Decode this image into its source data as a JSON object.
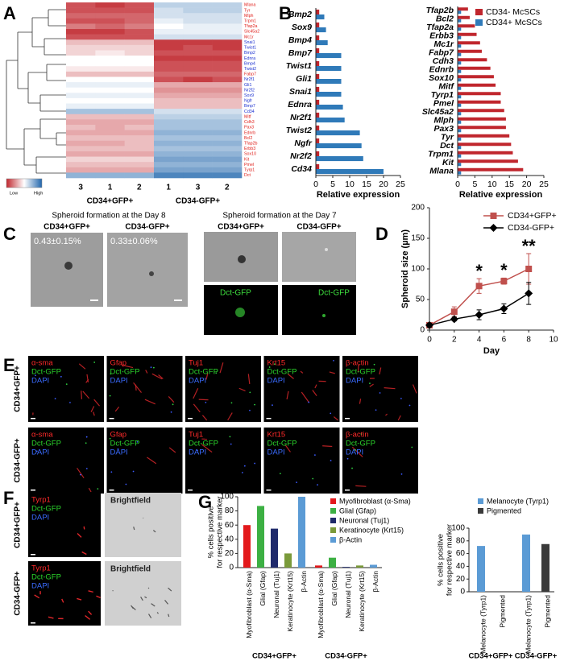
{
  "panel_letters": [
    "A",
    "B",
    "C",
    "D",
    "E",
    "F",
    "G"
  ],
  "chart_data": [
    {
      "type": "heatmap",
      "rows": [
        "Mlana",
        "Tyr",
        "Mlph",
        "Trpm1",
        "Tfap2a",
        "Slc45a2",
        "Mc1r",
        "Snai1",
        "Twist1",
        "Bmp2",
        "Ednra",
        "Bmp4",
        "Twist2",
        "Fabp7",
        "Nr2f1",
        "Gli1",
        "Nr2f2",
        "Sox9",
        "Ngfr",
        "Bmp7",
        "Cd34",
        "Mitf",
        "Cdh3",
        "Pax3",
        "Ednrb",
        "Bcl2",
        "Tfap2b",
        "Erbb3",
        "Sox10",
        "Kit",
        "Pmel",
        "Tyrp1",
        "Dct"
      ],
      "row_label_colors": [
        "#e0201b",
        "#e0201b",
        "#e0201b",
        "#e0201b",
        "#e0201b",
        "#e0201b",
        "#e0201b",
        "#1a2fd0",
        "#1a2fd0",
        "#1a2fd0",
        "#1a2fd0",
        "#1a2fd0",
        "#1a2fd0",
        "#e0201b",
        "#1a2fd0",
        "#1a2fd0",
        "#1a2fd0",
        "#1a2fd0",
        "#1a2fd0",
        "#1a2fd0",
        "#1a2fd0",
        "#e0201b",
        "#e0201b",
        "#e0201b",
        "#e0201b",
        "#e0201b",
        "#e0201b",
        "#e0201b",
        "#e0201b",
        "#e0201b",
        "#e0201b",
        "#e0201b",
        "#e0201b"
      ],
      "columns": [
        "3",
        "1",
        "2",
        "1",
        "3",
        "2"
      ],
      "groups": [
        "CD34+GFP+",
        "CD34-GFP+"
      ],
      "values": [
        [
          -0.8,
          -0.9,
          -0.8,
          0.3,
          0.3,
          0.3
        ],
        [
          -0.8,
          -0.8,
          -0.8,
          0.2,
          0.3,
          0.3
        ],
        [
          -0.7,
          -0.7,
          -0.7,
          0.2,
          0.2,
          0.2
        ],
        [
          -0.8,
          -0.8,
          -0.7,
          0.1,
          0.2,
          0.2
        ],
        [
          -0.6,
          -0.7,
          -0.6,
          0.0,
          0.1,
          0.1
        ],
        [
          -0.9,
          -0.9,
          -0.8,
          0.1,
          0.1,
          0.1
        ],
        [
          -0.8,
          -0.8,
          -0.8,
          0.2,
          0.2,
          0.2
        ],
        [
          -0.3,
          -0.3,
          -0.3,
          -0.9,
          -0.9,
          -0.9
        ],
        [
          -0.2,
          -0.2,
          -0.2,
          -0.9,
          -0.8,
          -0.9
        ],
        [
          -0.2,
          -0.1,
          -0.2,
          -0.8,
          -0.8,
          -0.8
        ],
        [
          0.0,
          0.0,
          0.0,
          -0.9,
          -0.9,
          -0.9
        ],
        [
          0.0,
          0.0,
          0.0,
          -0.8,
          -0.8,
          -0.8
        ],
        [
          -0.1,
          -0.1,
          -0.1,
          -0.8,
          -0.8,
          -0.8
        ],
        [
          -0.3,
          -0.3,
          -0.3,
          -0.7,
          -0.7,
          -0.7
        ],
        [
          0.0,
          0.0,
          0.0,
          -0.8,
          -0.9,
          -0.8
        ],
        [
          0.1,
          0.1,
          0.1,
          -0.4,
          -0.4,
          -0.4
        ],
        [
          0.0,
          0.0,
          0.0,
          -0.5,
          -0.5,
          -0.5
        ],
        [
          0.1,
          0.1,
          0.1,
          -0.4,
          -0.4,
          -0.4
        ],
        [
          0.0,
          0.0,
          0.0,
          -0.3,
          -0.3,
          -0.3
        ],
        [
          0.1,
          0.1,
          0.1,
          -0.3,
          -0.3,
          -0.3
        ],
        [
          0.4,
          0.4,
          0.4,
          0.2,
          0.2,
          0.2
        ],
        [
          -0.3,
          -0.3,
          -0.3,
          0.3,
          0.3,
          0.3
        ],
        [
          -0.4,
          -0.4,
          -0.4,
          0.4,
          0.4,
          0.4
        ],
        [
          -0.3,
          -0.4,
          -0.3,
          0.4,
          0.4,
          0.4
        ],
        [
          -0.4,
          -0.4,
          -0.4,
          0.5,
          0.5,
          0.5
        ],
        [
          -0.3,
          -0.3,
          -0.3,
          0.4,
          0.4,
          0.4
        ],
        [
          -0.4,
          -0.4,
          -0.3,
          0.5,
          0.5,
          0.5
        ],
        [
          -0.3,
          -0.3,
          -0.3,
          0.4,
          0.4,
          0.4
        ],
        [
          -0.4,
          -0.4,
          -0.4,
          0.5,
          0.5,
          0.5
        ],
        [
          -0.2,
          -0.2,
          -0.2,
          0.6,
          0.6,
          0.6
        ],
        [
          -0.3,
          -0.3,
          -0.3,
          0.5,
          0.5,
          0.5
        ],
        [
          -0.4,
          -0.4,
          -0.4,
          0.6,
          0.6,
          0.6
        ],
        [
          0.5,
          0.5,
          0.5,
          0.8,
          0.8,
          0.8
        ]
      ],
      "zlim": [
        -1,
        1
      ],
      "colors": [
        "#c0262d",
        "#ffffff",
        "#2166ac"
      ],
      "colorbar_labels": [
        "Low",
        "High"
      ]
    },
    {
      "type": "hbar",
      "categories": [
        "Bmp2",
        "Sox9",
        "Bmp4",
        "Bmp7",
        "Twist1",
        "Gli1",
        "Snai1",
        "Ednra",
        "Nr2f1",
        "Twist2",
        "Ngfr",
        "Nr2f2",
        "Cd34"
      ],
      "series": [
        {
          "color": "#c0262d",
          "values": [
            1,
            1,
            1,
            1,
            1,
            1,
            1,
            1,
            1,
            1,
            1,
            1,
            1
          ]
        },
        {
          "color": "#2f7ab9",
          "values": [
            2.5,
            3,
            3.5,
            7.5,
            7.5,
            7.5,
            7.5,
            8,
            8.5,
            13,
            13.5,
            14,
            20
          ]
        }
      ],
      "xlim": [
        0,
        25
      ],
      "xticks": [
        0,
        5,
        10,
        15,
        20,
        25
      ],
      "xlabel": "Relative expression"
    },
    {
      "type": "hbar",
      "categories": [
        "Tfap2b",
        "Bcl2",
        "Tfap2a",
        "Erbb3",
        "Mc1r",
        "Fabp7",
        "Cdh3",
        "Ednrb",
        "Sox10",
        "Mitf",
        "Tyrp1",
        "Pmel",
        "Slc45a2",
        "Mlph",
        "Pax3",
        "Tyr",
        "Dct",
        "Trpm1",
        "Kit",
        "Mlana"
      ],
      "series": [
        {
          "name": "CD34- McSCs",
          "color": "#c0262d",
          "values": [
            3,
            3.5,
            5,
            5.5,
            6.5,
            7,
            8.5,
            9.5,
            10.5,
            11,
            12.5,
            12.5,
            13.5,
            14,
            14,
            15,
            15.5,
            16,
            17.5,
            19
          ]
        },
        {
          "name": "CD34+ McSCs",
          "color": "#2f7ab9",
          "values": [
            1,
            1,
            1,
            1,
            1,
            1,
            1,
            1,
            1,
            1,
            1,
            1,
            1,
            1,
            1,
            1,
            1,
            1,
            1,
            1
          ]
        }
      ],
      "xlim": [
        0,
        25
      ],
      "xticks": [
        0,
        5,
        10,
        15,
        20,
        25
      ],
      "xlabel": "Relative expression"
    },
    {
      "type": "line",
      "x": [
        0,
        2,
        4,
        6,
        8
      ],
      "series": [
        {
          "name": "CD34+GFP+",
          "color": "#c0504d",
          "marker": "square",
          "values": [
            8,
            30,
            72,
            80,
            100
          ],
          "errors": [
            3,
            8,
            12,
            5,
            25
          ]
        },
        {
          "name": "CD34-GFP+",
          "color": "#000000",
          "marker": "diamond",
          "values": [
            8,
            18,
            25,
            35,
            60
          ],
          "errors": [
            3,
            3,
            8,
            8,
            18
          ]
        }
      ],
      "xlim": [
        0,
        10
      ],
      "xticks": [
        0,
        2,
        4,
        6,
        8,
        10
      ],
      "ylim": [
        0,
        200
      ],
      "yticks": [
        0,
        50,
        100,
        150,
        200
      ],
      "xlabel": "Day",
      "ylabel": "Spheroid size (µm)",
      "annotations": [
        {
          "x": 4,
          "text": "*"
        },
        {
          "x": 6,
          "text": "*"
        },
        {
          "x": 8,
          "text": "**"
        }
      ]
    },
    {
      "type": "bar",
      "categories": [
        "CD34+GFP+",
        "CD34-GFP+"
      ],
      "series": [
        {
          "name": "Myofibroblast (α-Sma)",
          "color": "#e3191c",
          "values": [
            60,
            3
          ]
        },
        {
          "name": "Glial (Gfap)",
          "color": "#3cb043",
          "values": [
            87,
            14
          ]
        },
        {
          "name": "Neuronal (Tuj1)",
          "color": "#1f2a6b",
          "values": [
            55,
            1
          ]
        },
        {
          "name": "Keratinocyte (Krt15)",
          "color": "#7a9a3a",
          "values": [
            20,
            3
          ]
        },
        {
          "name": "β-Actin",
          "color": "#5b9bd5",
          "values": [
            100,
            4
          ]
        }
      ],
      "ylim": [
        0,
        100
      ],
      "yticks": [
        0,
        20,
        40,
        60,
        80,
        100
      ],
      "ylabel_lines": [
        "% cells positive",
        "for respective marker"
      ]
    },
    {
      "type": "bar",
      "categories": [
        "CD34+GFP+",
        "CD34-GFP+"
      ],
      "series": [
        {
          "name": "Melanocyte (Tyrp1)",
          "color": "#5b9bd5",
          "values": [
            72,
            90
          ]
        },
        {
          "name": "Pigmented",
          "color": "#3a3a3a",
          "values": [
            0,
            75
          ]
        }
      ],
      "ylim": [
        0,
        100
      ],
      "yticks": [
        0,
        20,
        40,
        60,
        80,
        100
      ],
      "ylabel_lines": [
        "% cells positive",
        "for respective marker"
      ]
    }
  ],
  "panel_c": {
    "left_title": "Spheroid formation at the Day 8",
    "right_title": "Spheroid formation at the Day 7",
    "groups": [
      "CD34+GFP+",
      "CD34-GFP+"
    ],
    "percentages": [
      "0.43±0.15%",
      "0.33±0.06%"
    ],
    "fluor_label": "Dct-GFP"
  },
  "panel_e": {
    "groups": [
      "CD34+GFP+",
      "CD34-GFP+"
    ],
    "markers": [
      "α-sma",
      "Gfap",
      "Tuj1",
      "Krt15",
      "β-actin"
    ],
    "gfp": "Dct-GFP",
    "dapi": "DAPI"
  },
  "panel_f": {
    "groups": [
      "CD34+GFP+",
      "CD34-GFP+"
    ],
    "marker": "Tyrp1",
    "gfp": "Dct-GFP",
    "dapi": "DAPI",
    "brightfield": "Brightfield"
  }
}
